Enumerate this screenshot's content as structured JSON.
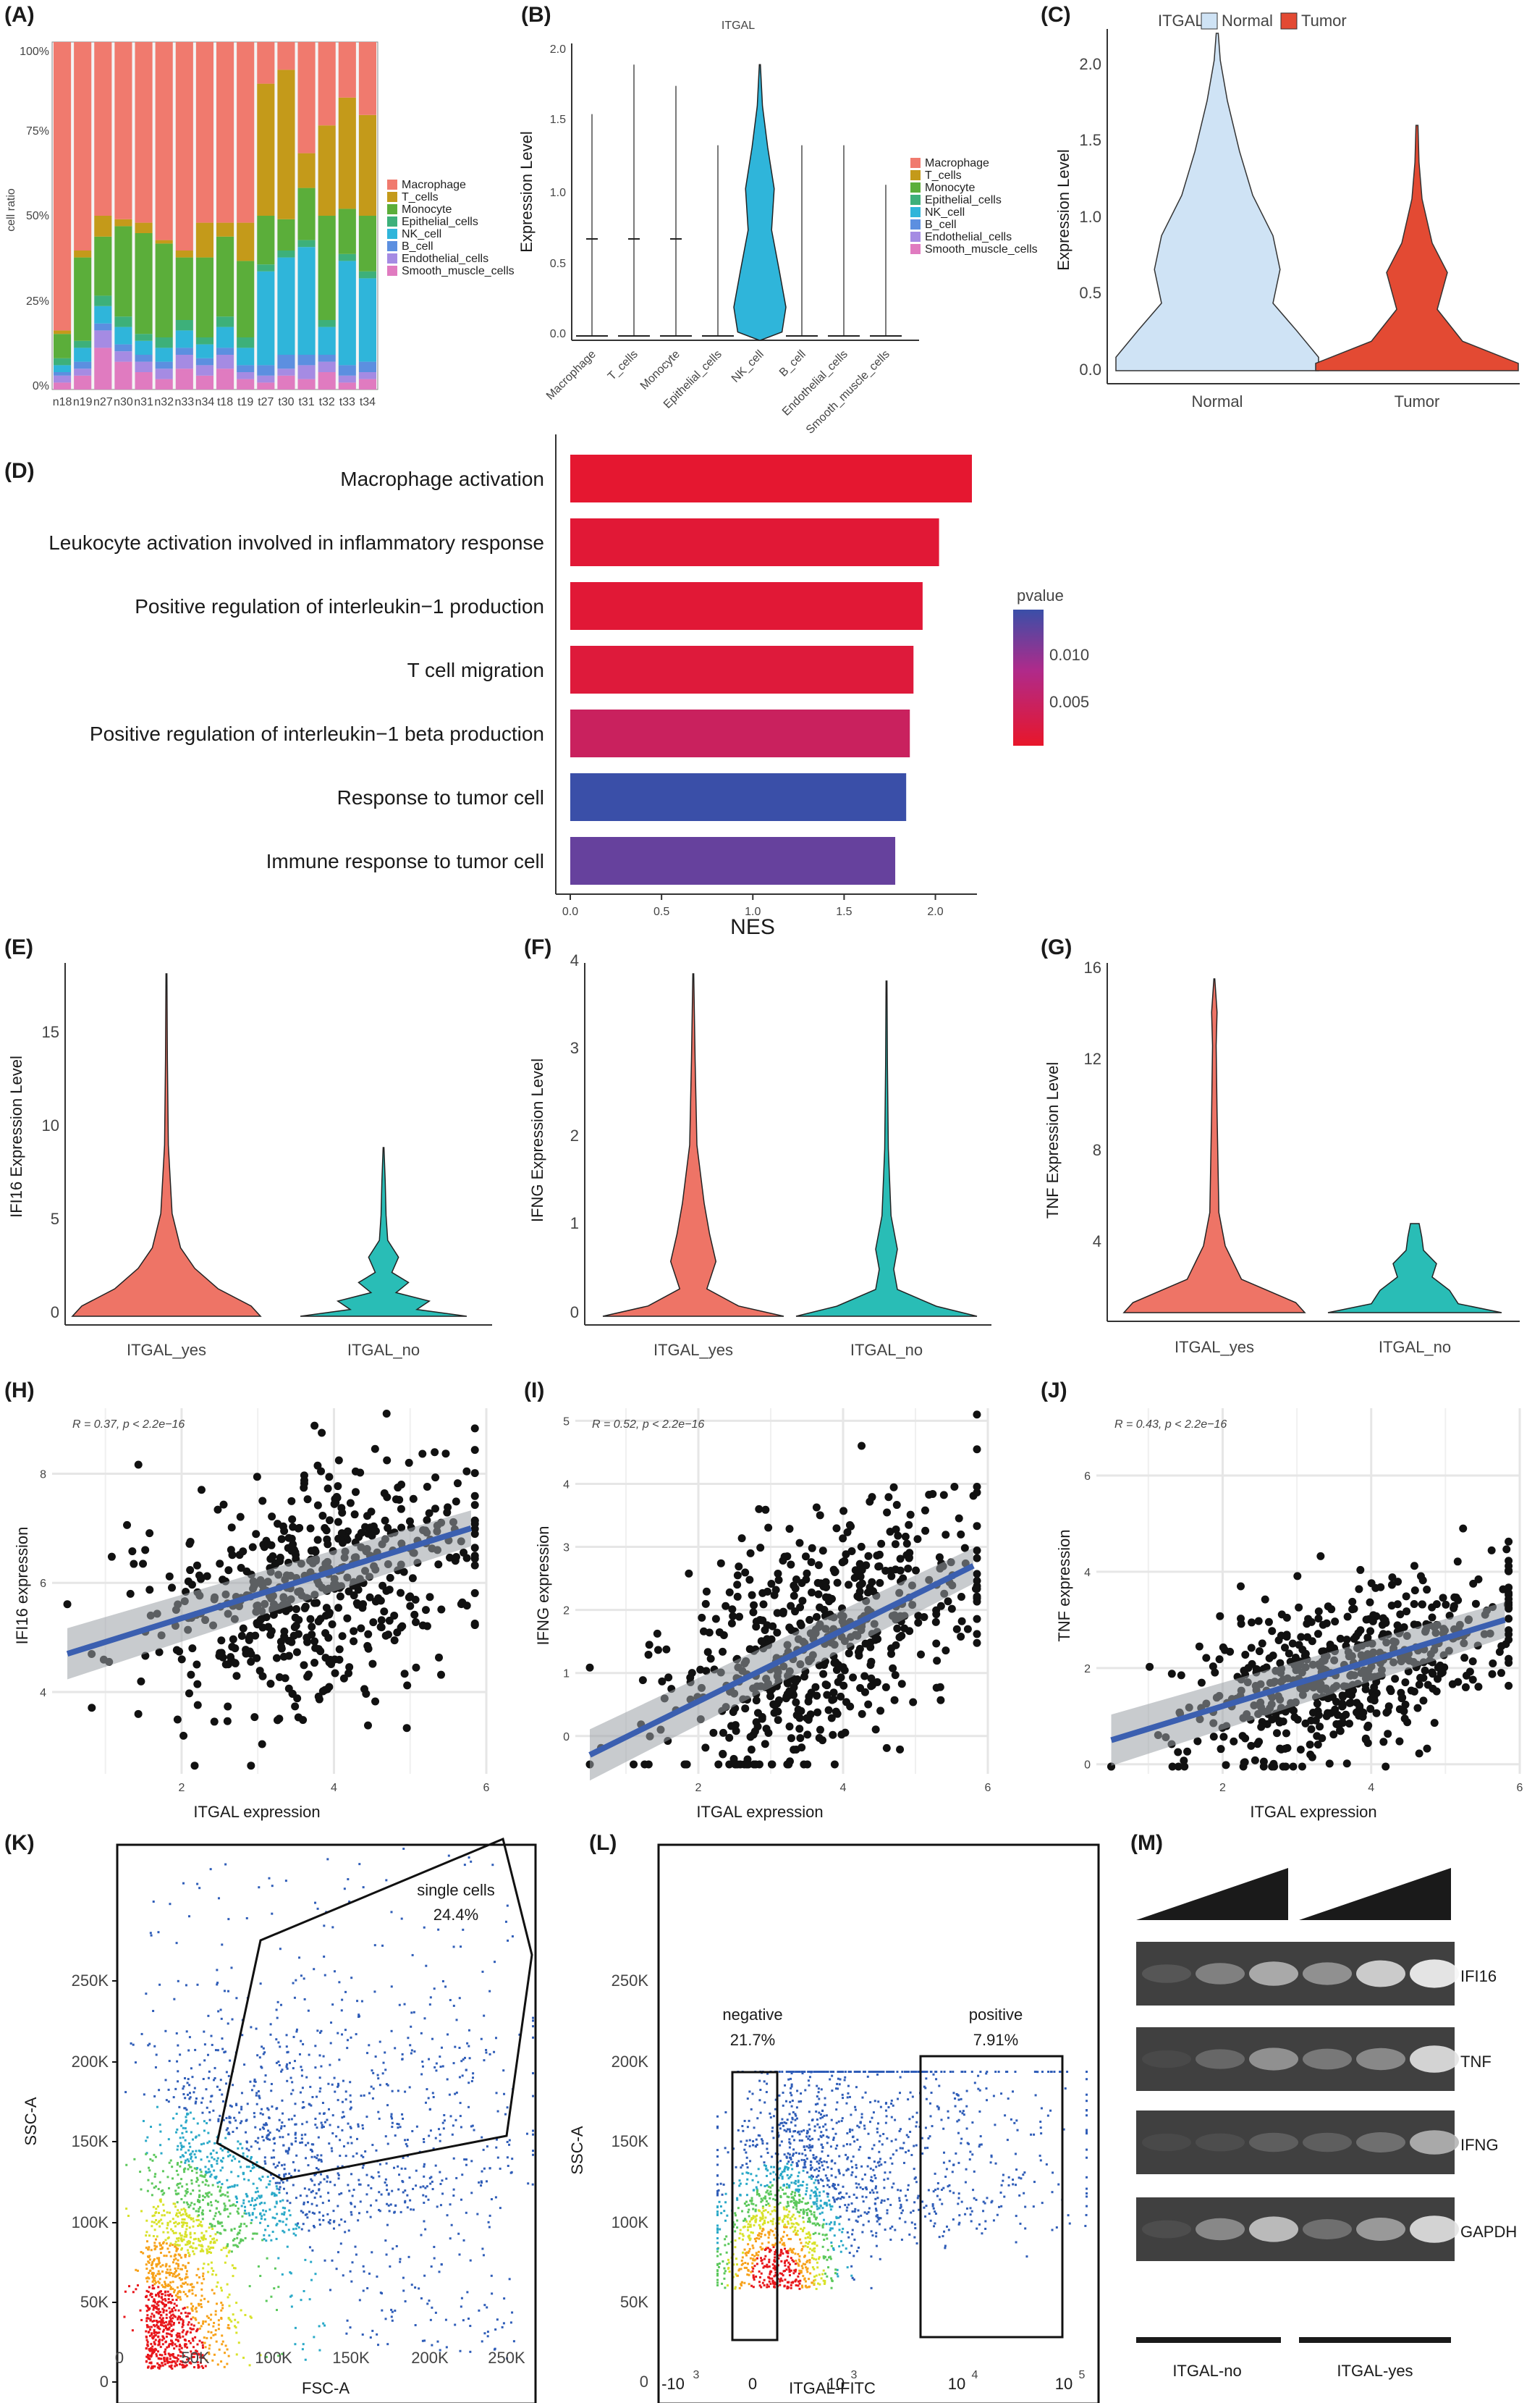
{
  "panels": {
    "A": {
      "label": "(A)",
      "ylabel": "cell ratio",
      "yticks": [
        "0%",
        "25%",
        "50%",
        "75%",
        "100%"
      ]
    },
    "B": {
      "label": "(B)",
      "title": "ITGAL",
      "ylabel": "Expression Level",
      "yticks": [
        "0.0",
        "0.5",
        "1.0",
        "1.5",
        "2.0"
      ]
    },
    "C": {
      "label": "(C)",
      "legend_title": "ITGAL",
      "ylabel": "Expression Level",
      "yticks": [
        "0.0",
        "0.5",
        "1.0",
        "1.5",
        "2.0"
      ],
      "xticks": [
        "Normal",
        "Tumor"
      ]
    },
    "D": {
      "label": "(D)",
      "xlabel": "NES",
      "xticks": [
        "0.0",
        "0.5",
        "1.0",
        "1.5",
        "2.0"
      ],
      "legend_title": "pvalue",
      "legend_ticks": [
        "0.010",
        "0.005"
      ]
    },
    "E": {
      "label": "(E)",
      "ylabel": "IFI16 Expression Level",
      "yticks": [
        "0",
        "5",
        "10",
        "15"
      ],
      "xticks": [
        "ITGAL_yes",
        "ITGAL_no"
      ]
    },
    "F": {
      "label": "(F)",
      "ylabel": "IFNG Expression Level",
      "yticks": [
        "0",
        "1",
        "2",
        "3",
        "4"
      ],
      "xticks": [
        "ITGAL_yes",
        "ITGAL_no"
      ]
    },
    "G": {
      "label": "(G)",
      "ylabel": "TNF Expression Level",
      "yticks": [
        "4",
        "8",
        "12",
        "16"
      ],
      "xticks": [
        "ITGAL_yes",
        "ITGAL_no"
      ]
    },
    "H": {
      "label": "(H)",
      "stat": "R = 0.37, p < 2.2e−16",
      "xlabel": "ITGAL expression",
      "ylabel": "IFI16 expression",
      "xticks": [
        "2",
        "4",
        "6"
      ],
      "yticks": [
        "4",
        "6",
        "8"
      ]
    },
    "I": {
      "label": "(I)",
      "stat": "R = 0.52, p < 2.2e−16",
      "xlabel": "ITGAL expression",
      "ylabel": "IFNG expression",
      "xticks": [
        "2",
        "4",
        "6"
      ],
      "yticks": [
        "0",
        "1",
        "2",
        "3",
        "4",
        "5"
      ]
    },
    "J": {
      "label": "(J)",
      "stat": "R = 0.43, p < 2.2e−16",
      "xlabel": "ITGAL expression",
      "ylabel": "TNF expression",
      "xticks": [
        "2",
        "4",
        "6"
      ],
      "yticks": [
        "0",
        "2",
        "4",
        "6"
      ]
    },
    "K": {
      "label": "(K)",
      "xlabel": "FSC-A",
      "ylabel": "SSC-A",
      "gate_name": "single cells",
      "gate_pct": "24.4%",
      "ticks": [
        "0",
        "50K",
        "100K",
        "150K",
        "200K",
        "250K"
      ]
    },
    "L": {
      "label": "(L)",
      "xlabel": "ITGAL-FITC",
      "ylabel": "SSC-A",
      "neg_name": "negative",
      "neg_pct": "21.7%",
      "pos_name": "positive",
      "pos_pct": "7.91%",
      "yticks": [
        "0",
        "50K",
        "100K",
        "150K",
        "200K",
        "250K"
      ],
      "xticks": [
        "-10",
        "3",
        "0",
        "10",
        "3",
        "10",
        "4",
        "10",
        "5"
      ]
    },
    "M": {
      "label": "(M)",
      "bands": [
        "IFI16",
        "TNF",
        "IFNG",
        "GAPDH"
      ],
      "groups": [
        "ITGAL-no",
        "ITGAL-yes"
      ]
    }
  },
  "chart_data": [
    {
      "panel": "A",
      "type": "bar",
      "stacked": true,
      "categories": [
        "n18",
        "n19",
        "n27",
        "n30",
        "n31",
        "n32",
        "n33",
        "n34",
        "t18",
        "t19",
        "t27",
        "t30",
        "t31",
        "t32",
        "t33",
        "t34"
      ],
      "legend": [
        "Macrophage",
        "T_cells",
        "Monocyte",
        "Epithelial_cells",
        "NK_cell",
        "B_cell",
        "Endothelial_cells",
        "Smooth_muscle_cells"
      ],
      "colors": [
        "#F07A6E",
        "#C49A1A",
        "#5BAE3A",
        "#3DB07A",
        "#2FB5DA",
        "#5C8FE0",
        "#A58BE3",
        "#E07BC0"
      ],
      "series": [
        {
          "name": "Smooth_muscle_cells",
          "values": [
            0.02,
            0.04,
            0.12,
            0.08,
            0.05,
            0.03,
            0.06,
            0.04,
            0.06,
            0.03,
            0.02,
            0.04,
            0.03,
            0.05,
            0.02,
            0.03
          ]
        },
        {
          "name": "Endothelial_cells",
          "values": [
            0.02,
            0.02,
            0.05,
            0.03,
            0.03,
            0.03,
            0.04,
            0.03,
            0.04,
            0.02,
            0.02,
            0.02,
            0.04,
            0.03,
            0.02,
            0.02
          ]
        },
        {
          "name": "B_cell",
          "values": [
            0.01,
            0.02,
            0.02,
            0.02,
            0.02,
            0.02,
            0.02,
            0.02,
            0.02,
            0.02,
            0.03,
            0.04,
            0.03,
            0.02,
            0.03,
            0.03
          ]
        },
        {
          "name": "NK_cell",
          "values": [
            0.02,
            0.04,
            0.05,
            0.05,
            0.04,
            0.04,
            0.05,
            0.04,
            0.06,
            0.05,
            0.27,
            0.28,
            0.31,
            0.08,
            0.3,
            0.24
          ]
        },
        {
          "name": "Epithelial_cells",
          "values": [
            0.02,
            0.02,
            0.03,
            0.03,
            0.02,
            0.03,
            0.03,
            0.02,
            0.03,
            0.03,
            0.02,
            0.02,
            0.02,
            0.02,
            0.02,
            0.02
          ]
        },
        {
          "name": "Monocyte",
          "values": [
            0.07,
            0.24,
            0.17,
            0.26,
            0.29,
            0.27,
            0.18,
            0.23,
            0.23,
            0.22,
            0.14,
            0.09,
            0.15,
            0.3,
            0.13,
            0.16
          ]
        },
        {
          "name": "T_cells",
          "values": [
            0.01,
            0.02,
            0.06,
            0.02,
            0.03,
            0.01,
            0.02,
            0.1,
            0.04,
            0.11,
            0.38,
            0.43,
            0.1,
            0.26,
            0.32,
            0.29
          ]
        },
        {
          "name": "Macrophage",
          "values": [
            0.83,
            0.6,
            0.5,
            0.51,
            0.52,
            0.57,
            0.6,
            0.52,
            0.52,
            0.52,
            0.12,
            0.08,
            0.32,
            0.24,
            0.16,
            0.21
          ]
        }
      ],
      "ylabel": "cell ratio",
      "ylim": [
        0,
        1
      ]
    },
    {
      "panel": "B",
      "type": "violin",
      "title": "ITGAL",
      "categories": [
        "Macrophage",
        "T_cells",
        "Monocyte",
        "Epithelial_cells",
        "NK_cell",
        "B_cell",
        "Endothelial_cells",
        "Smooth_muscle_cells"
      ],
      "max": [
        1.6,
        1.95,
        1.8,
        1.38,
        1.95,
        1.38,
        1.38,
        1.1
      ],
      "colors": [
        "#F07A6E",
        "#C49A1A",
        "#5BAE3A",
        "#3DB07A",
        "#2FB5DA",
        "#5C8FE0",
        "#A58BE3",
        "#E07BC0"
      ],
      "ylabel": "Expression Level",
      "ylim": [
        0,
        2.1
      ]
    },
    {
      "panel": "C",
      "type": "violin",
      "categories": [
        "Normal",
        "Tumor"
      ],
      "series": [
        {
          "name": "Normal",
          "color": "#CFE3F5"
        },
        {
          "name": "Tumor",
          "color": "#E34A33"
        }
      ],
      "max": [
        2.2,
        1.6
      ],
      "ylabel": "Expression Level",
      "ylim": [
        0,
        2.2
      ]
    },
    {
      "panel": "D",
      "type": "bar",
      "orientation": "horizontal",
      "categories": [
        "Macrophage activation",
        "Leukocyte activation involved in inflammatory response",
        "Positive regulation of interleukin−1 production",
        "T cell migration",
        "Positive regulation of interleukin−1 beta production",
        "Response to tumor cell",
        "Immune response to tumor cell"
      ],
      "values": [
        2.2,
        2.02,
        1.93,
        1.88,
        1.86,
        1.84,
        1.78
      ],
      "pvalue": [
        0.0005,
        0.001,
        0.001,
        0.0015,
        0.0045,
        0.015,
        0.0125
      ],
      "xlabel": "NES",
      "xlim": [
        0,
        2.3
      ]
    },
    {
      "panel": "E",
      "type": "violin",
      "categories": [
        "ITGAL_yes",
        "ITGAL_no"
      ],
      "max": [
        18,
        9
      ],
      "ylabel": "IFI16 Expression Level",
      "ylim": [
        0,
        18
      ]
    },
    {
      "panel": "F",
      "type": "violin",
      "categories": [
        "ITGAL_yes",
        "ITGAL_no"
      ],
      "max": [
        3.9,
        3.8
      ],
      "ylabel": "IFNG Expression Level",
      "ylim": [
        0,
        4
      ]
    },
    {
      "panel": "G",
      "type": "violin",
      "categories": [
        "ITGAL_yes",
        "ITGAL_no"
      ],
      "max": [
        16,
        5
      ],
      "ylabel": "TNF Expression Level",
      "ylim": [
        1,
        16
      ]
    },
    {
      "panel": "H",
      "type": "scatter",
      "xlabel": "ITGAL expression",
      "ylabel": "IFI16 expression",
      "r": 0.37,
      "fit": [
        [
          0.5,
          4.7
        ],
        [
          5.8,
          7.0
        ]
      ],
      "xlim": [
        0.3,
        6.0
      ],
      "ylim": [
        2.5,
        9.2
      ]
    },
    {
      "panel": "I",
      "type": "scatter",
      "xlabel": "ITGAL expression",
      "ylabel": "IFNG expression",
      "r": 0.52,
      "fit": [
        [
          0.5,
          -0.3
        ],
        [
          5.8,
          2.7
        ]
      ],
      "xlim": [
        0.3,
        6.0
      ],
      "ylim": [
        -0.6,
        5.2
      ]
    },
    {
      "panel": "J",
      "type": "scatter",
      "xlabel": "ITGAL expression",
      "ylabel": "TNF expression",
      "r": 0.43,
      "fit": [
        [
          0.5,
          0.5
        ],
        [
          5.8,
          3.0
        ]
      ],
      "xlim": [
        0.3,
        6.0
      ],
      "ylim": [
        -0.2,
        7.4
      ]
    }
  ]
}
